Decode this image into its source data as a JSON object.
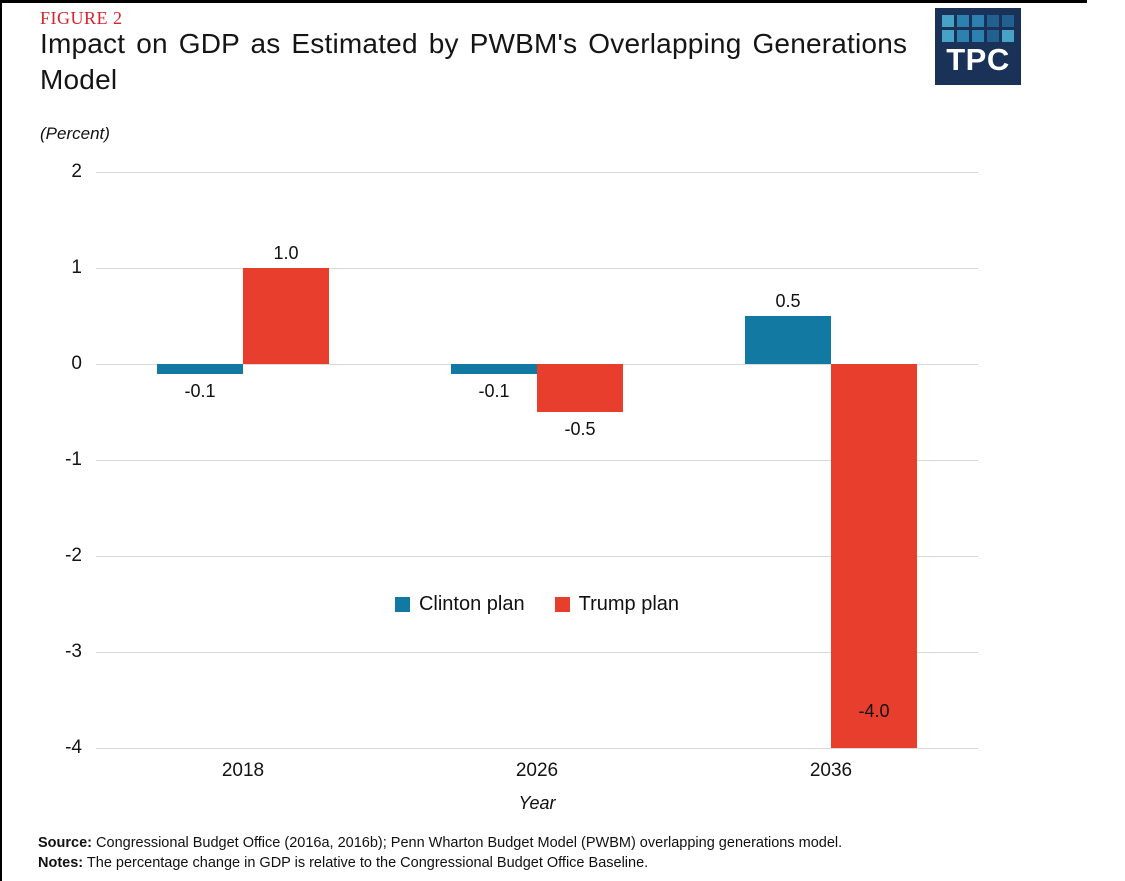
{
  "page": {
    "figure_label": "FIGURE 2",
    "title": "Impact on GDP as Estimated by PWBM's Overlapping Generations Model"
  },
  "logo": {
    "text": "TPC",
    "bg_color": "#1a3158",
    "square_colors": [
      "#47a3c6",
      "#2d81b0",
      "#2d81b0",
      "#226090",
      "#226090",
      "#47a3c6",
      "#2d81b0",
      "#2d81b0",
      "#226090",
      "#47a3c6"
    ]
  },
  "chart_data": {
    "type": "bar",
    "title": "Impact on GDP as Estimated by PWBM's Overlapping Generations Model",
    "unit_label": "(Percent)",
    "xlabel": "Year",
    "ylabel": "(Percent)",
    "categories": [
      "2018",
      "2026",
      "2036"
    ],
    "series": [
      {
        "name": "Clinton plan",
        "color": "#1179a2",
        "values": [
          -0.1,
          -0.1,
          0.5
        ],
        "labels": [
          "-0.1",
          "-0.1",
          "0.5"
        ]
      },
      {
        "name": "Trump plan",
        "color": "#e83e2e",
        "values": [
          1.0,
          -0.5,
          -4.0
        ],
        "labels": [
          "1.0",
          "-0.5",
          "-4.0"
        ]
      }
    ],
    "ylim": [
      -4,
      2
    ],
    "yticks": [
      2,
      1,
      0,
      -1,
      -2,
      -3,
      -4
    ],
    "grid": true,
    "gridline_color": "#d9d9d9",
    "legend_position": "inside-center"
  },
  "footer": {
    "source_label": "Source:",
    "source_text": "Congressional Budget Office (2016a, 2016b); Penn Wharton Budget Model (PWBM) overlapping generations model.",
    "notes_label": "Notes:",
    "notes_text": "The percentage change in GDP is relative to the Congressional Budget Office Baseline."
  }
}
